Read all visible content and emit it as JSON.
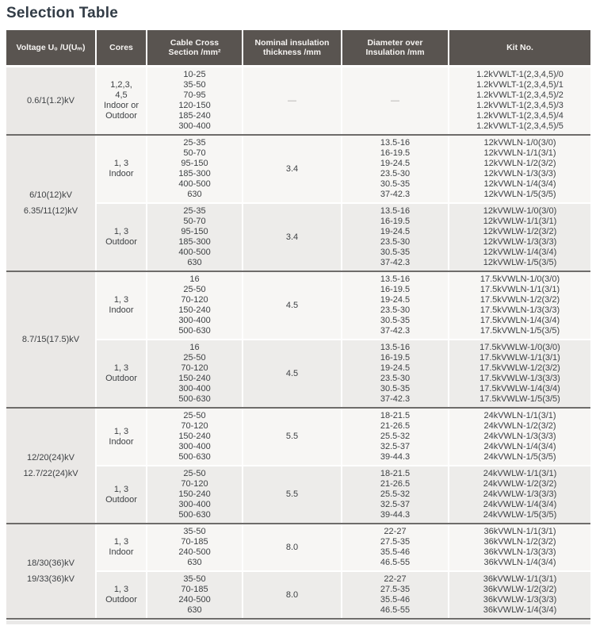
{
  "page": {
    "title": "Selection Table"
  },
  "colors": {
    "header_bg": "#595450",
    "header_text": "#f6f4f2",
    "divider": "#6e6c6a",
    "voltage_bg": "#eae8e6",
    "row_light": "#f7f6f4",
    "row_dark": "#edecea",
    "title_text": "#323c46",
    "body_text": "#3e4144",
    "muted_dash": "#a9a7a5"
  },
  "table": {
    "columns": [
      {
        "label": "Voltage U₀ /U(Uₘ)"
      },
      {
        "label": "Cores"
      },
      {
        "label": "Cable Cross\nSection /mm²"
      },
      {
        "label": "Nominal insulation\nthickness /mm"
      },
      {
        "label": "Diameter over\nInsulation /mm"
      },
      {
        "label": "Kit No."
      }
    ],
    "sections": [
      {
        "id": "0-6-1-1-2-kv",
        "voltage_lines": [
          "0.6/1(1.2)kV"
        ],
        "groups": [
          {
            "cores_lines": [
              "1,2,3,",
              "4,5",
              "Indoor or",
              "Outdoor"
            ],
            "cross_sections": [
              "10-25",
              "35-50",
              "70-95",
              "120-150",
              "185-240",
              "300-400"
            ],
            "thickness": "—",
            "diameters": [
              "—"
            ],
            "kits": [
              "1.2kVWLT-1(2,3,4,5)/0",
              "1.2kVWLT-1(2,3,4,5)/1",
              "1.2kVWLT-1(2,3,4,5)/2",
              "1.2kVWLT-1(2,3,4,5)/3",
              "1.2kVWLT-1(2,3,4,5)/4",
              "1.2kVWLT-1(2,3,4,5)/5"
            ]
          }
        ]
      },
      {
        "id": "6-10-12-kv",
        "voltage_lines": [
          "6/10(12)kV",
          "6.35/11(12)kV"
        ],
        "groups": [
          {
            "cores_lines": [
              "1, 3",
              "Indoor"
            ],
            "cross_sections": [
              "25-35",
              "50-70",
              "95-150",
              "185-300",
              "400-500",
              "630"
            ],
            "thickness": "3.4",
            "diameters": [
              "13.5-16",
              "16-19.5",
              "19-24.5",
              "23.5-30",
              "30.5-35",
              "37-42.3"
            ],
            "kits": [
              "12kVWLN-1/0(3/0)",
              "12kVWLN-1/1(3/1)",
              "12kVWLN-1/2(3/2)",
              "12kVWLN-1/3(3/3)",
              "12kVWLN-1/4(3/4)",
              "12kVWLN-1/5(3/5)"
            ]
          },
          {
            "cores_lines": [
              "1, 3",
              "Outdoor"
            ],
            "cross_sections": [
              "25-35",
              "50-70",
              "95-150",
              "185-300",
              "400-500",
              "630"
            ],
            "thickness": "3.4",
            "diameters": [
              "13.5-16",
              "16-19.5",
              "19-24.5",
              "23.5-30",
              "30.5-35",
              "37-42.3"
            ],
            "kits": [
              "12kVWLW-1/0(3/0)",
              "12kVWLW-1/1(3/1)",
              "12kVWLW-1/2(3/2)",
              "12kVWLW-1/3(3/3)",
              "12kVWLW-1/4(3/4)",
              "12kVWLW-1/5(3/5)"
            ]
          }
        ]
      },
      {
        "id": "8-7-15-17-5-kv",
        "voltage_lines": [
          "8.7/15(17.5)kV"
        ],
        "groups": [
          {
            "cores_lines": [
              "1, 3",
              "Indoor"
            ],
            "cross_sections": [
              "16",
              "25-50",
              "70-120",
              "150-240",
              "300-400",
              "500-630"
            ],
            "thickness": "4.5",
            "diameters": [
              "13.5-16",
              "16-19.5",
              "19-24.5",
              "23.5-30",
              "30.5-35",
              "37-42.3"
            ],
            "kits": [
              "17.5kVWLN-1/0(3/0)",
              "17.5kVWLN-1/1(3/1)",
              "17.5kVWLN-1/2(3/2)",
              "17.5kVWLN-1/3(3/3)",
              "17.5kVWLN-1/4(3/4)",
              "17.5kVWLN-1/5(3/5)"
            ]
          },
          {
            "cores_lines": [
              "1, 3",
              "Outdoor"
            ],
            "cross_sections": [
              "16",
              "25-50",
              "70-120",
              "150-240",
              "300-400",
              "500-630"
            ],
            "thickness": "4.5",
            "diameters": [
              "13.5-16",
              "16-19.5",
              "19-24.5",
              "23.5-30",
              "30.5-35",
              "37-42.3"
            ],
            "kits": [
              "17.5kVWLW-1/0(3/0)",
              "17.5kVWLW-1/1(3/1)",
              "17.5kVWLW-1/2(3/2)",
              "17.5kVWLW-1/3(3/3)",
              "17.5kVWLW-1/4(3/4)",
              "17.5kVWLW-1/5(3/5)"
            ]
          }
        ]
      },
      {
        "id": "12-20-24-kv",
        "voltage_lines": [
          "12/20(24)kV",
          "12.7/22(24)kV"
        ],
        "groups": [
          {
            "cores_lines": [
              "1, 3",
              "Indoor"
            ],
            "cross_sections": [
              "25-50",
              "70-120",
              "150-240",
              "300-400",
              "500-630"
            ],
            "thickness": "5.5",
            "diameters": [
              "18-21.5",
              "21-26.5",
              "25.5-32",
              "32.5-37",
              "39-44.3"
            ],
            "kits": [
              "24kVWLN-1/1(3/1)",
              "24kVWLN-1/2(3/2)",
              "24kVWLN-1/3(3/3)",
              "24kVWLN-1/4(3/4)",
              "24kVWLN-1/5(3/5)"
            ]
          },
          {
            "cores_lines": [
              "1, 3",
              "Outdoor"
            ],
            "cross_sections": [
              "25-50",
              "70-120",
              "150-240",
              "300-400",
              "500-630"
            ],
            "thickness": "5.5",
            "diameters": [
              "18-21.5",
              "21-26.5",
              "25.5-32",
              "32.5-37",
              "39-44.3"
            ],
            "kits": [
              "24kVWLW-1/1(3/1)",
              "24kVWLW-1/2(3/2)",
              "24kVWLW-1/3(3/3)",
              "24kVWLW-1/4(3/4)",
              "24kVWLW-1/5(3/5)"
            ]
          }
        ]
      },
      {
        "id": "18-30-36-kv",
        "voltage_lines": [
          "18/30(36)kV",
          "19/33(36)kV"
        ],
        "groups": [
          {
            "cores_lines": [
              "1, 3",
              "Indoor"
            ],
            "cross_sections": [
              "35-50",
              "70-185",
              "240-500",
              "630"
            ],
            "thickness": "8.0",
            "diameters": [
              "22-27",
              "27.5-35",
              "35.5-46",
              "46.5-55"
            ],
            "kits": [
              "36kVWLN-1/1(3/1)",
              "36kVWLN-1/2(3/2)",
              "36kVWLN-1/3(3/3)",
              "36kVWLN-1/4(3/4)"
            ]
          },
          {
            "cores_lines": [
              "1, 3",
              "Outdoor"
            ],
            "cross_sections": [
              "35-50",
              "70-185",
              "240-500",
              "630"
            ],
            "thickness": "8.0",
            "diameters": [
              "22-27",
              "27.5-35",
              "35.5-46",
              "46.5-55"
            ],
            "kits": [
              "36kVWLW-1/1(3/1)",
              "36kVWLW-1/2(3/2)",
              "36kVWLW-1/3(3/3)",
              "36kVWLW-1/4(3/4)"
            ]
          }
        ]
      }
    ]
  }
}
